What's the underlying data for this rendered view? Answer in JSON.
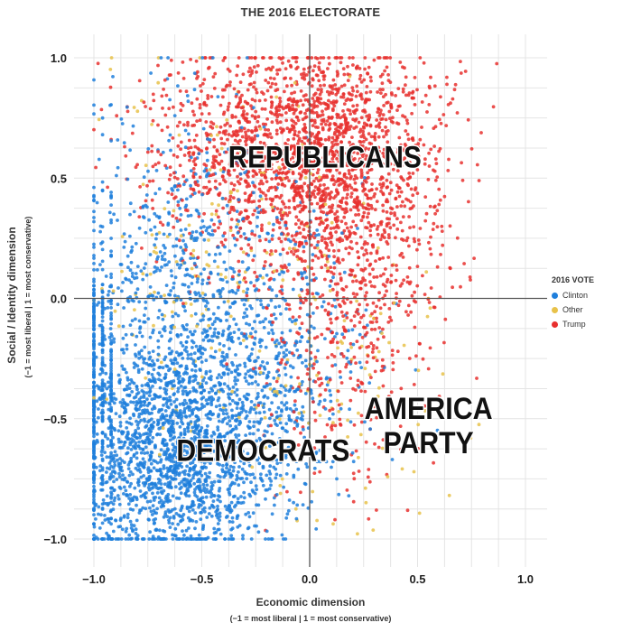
{
  "chart_data": {
    "type": "scatter",
    "title": "THE 2016 ELECTORATE",
    "xlabel": "Economic dimension",
    "xlabel_note": "(−1 = most liberal | 1 = most conservative)",
    "ylabel": "Social / Identity dimension",
    "ylabel_note": "(−1 = most liberal | 1 = most conservative)",
    "xlim": [
      -1.0,
      1.0
    ],
    "ylim": [
      -1.0,
      1.0
    ],
    "x_ticks": [
      -1.0,
      -0.5,
      0.0,
      0.5,
      1.0
    ],
    "x_tick_labels": [
      "−1.0",
      "−0.5",
      "0.0",
      "0.5",
      "1.0"
    ],
    "y_ticks": [
      1.0,
      0.5,
      0.0,
      -0.5,
      -1.0
    ],
    "y_tick_labels": [
      "1.0",
      "0.5",
      "0.0",
      "−0.5",
      "−1.0"
    ],
    "grid": true,
    "legend": {
      "title": "2016 VOTE",
      "position": "right",
      "items": [
        {
          "name": "Clinton",
          "color": "#1f7fdc"
        },
        {
          "name": "Other",
          "color": "#e8c24a"
        },
        {
          "name": "Trump",
          "color": "#e8302e"
        }
      ]
    },
    "annotations": [
      {
        "text": "REPUBLICANS",
        "x": 0.07,
        "y": 0.59
      },
      {
        "text": "DEMOCRATS",
        "x": -0.58,
        "y": -0.63
      },
      {
        "text": "AMERICA PARTY",
        "x": 0.53,
        "y": -0.52
      }
    ],
    "series": [
      {
        "name": "Trump",
        "color": "#e8302e",
        "clusters": [
          {
            "cx": 0.05,
            "cy": 0.6,
            "sx": 0.26,
            "sy": 0.24,
            "n": 1500
          },
          {
            "cx": -0.3,
            "cy": 0.62,
            "sx": 0.3,
            "sy": 0.22,
            "n": 500
          },
          {
            "cx": 0.2,
            "cy": 0.1,
            "sx": 0.22,
            "sy": 0.25,
            "n": 450
          },
          {
            "cx": 0.15,
            "cy": -0.45,
            "sx": 0.2,
            "sy": 0.22,
            "n": 130
          }
        ]
      },
      {
        "name": "Clinton",
        "color": "#1f7fdc",
        "clusters": [
          {
            "cx": -0.62,
            "cy": -0.62,
            "sx": 0.24,
            "sy": 0.26,
            "n": 2100
          },
          {
            "cx": -0.55,
            "cy": 0.12,
            "sx": 0.27,
            "sy": 0.32,
            "n": 650
          },
          {
            "cx": -0.12,
            "cy": -0.32,
            "sx": 0.2,
            "sy": 0.24,
            "n": 320
          }
        ],
        "x_edge_columns": [
          -1.0,
          -0.96,
          -0.92
        ]
      },
      {
        "name": "Other",
        "color": "#e8c24a",
        "clusters": [
          {
            "cx": -0.4,
            "cy": 0.2,
            "sx": 0.35,
            "sy": 0.4,
            "n": 200
          },
          {
            "cx": 0.2,
            "cy": -0.4,
            "sx": 0.25,
            "sy": 0.3,
            "n": 90
          }
        ]
      }
    ]
  }
}
